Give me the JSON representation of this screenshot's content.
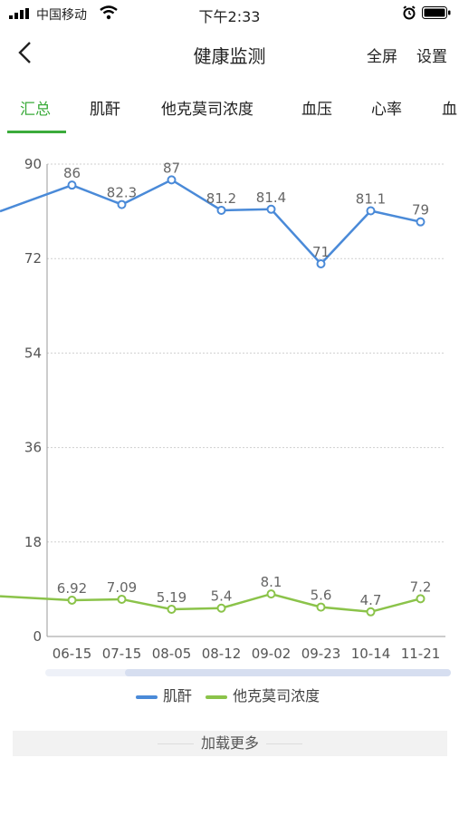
{
  "status_bar": {
    "carrier": "中国移动",
    "time": "下午2:33"
  },
  "nav": {
    "title": "健康监测",
    "fullscreen": "全屏",
    "settings": "设置"
  },
  "tabs": [
    "汇总",
    "肌酐",
    "他克莫司浓度",
    "血压",
    "心率",
    "血"
  ],
  "active_tab": 0,
  "colors": {
    "accent": "#3bab3b",
    "series1": "#4a8ad8",
    "series2": "#8bc34a"
  },
  "chart_data": {
    "type": "line",
    "categories": [
      "06-15",
      "07-15",
      "08-05",
      "08-12",
      "09-02",
      "09-23",
      "10-14",
      "11-21"
    ],
    "ylim": [
      0,
      90
    ],
    "yticks": [
      "0",
      "18",
      "36",
      "54",
      "72",
      "90"
    ],
    "series": [
      {
        "name": "肌酐",
        "values": [
          86,
          82.3,
          87,
          81.2,
          81.4,
          71,
          81.1,
          79
        ],
        "labels": [
          "86",
          "82.3",
          "87",
          "81.2",
          "81.4",
          "71",
          "81.1",
          "79"
        ]
      },
      {
        "name": "他克莫司浓度",
        "values": [
          6.92,
          7.09,
          5.19,
          5.4,
          8.1,
          5.6,
          4.7,
          7.2
        ],
        "labels": [
          "6.92",
          "7.09",
          "5.19",
          "5.4",
          "8.1",
          "5.6",
          "4.7",
          "7.2"
        ]
      }
    ],
    "grid": true
  },
  "load_more": "加载更多"
}
